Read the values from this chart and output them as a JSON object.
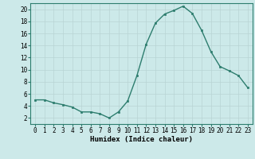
{
  "x": [
    0,
    1,
    2,
    3,
    4,
    5,
    6,
    7,
    8,
    9,
    10,
    11,
    12,
    13,
    14,
    15,
    16,
    17,
    18,
    19,
    20,
    21,
    22,
    23
  ],
  "y": [
    5,
    5,
    4.5,
    4.2,
    3.8,
    3.0,
    3.0,
    2.7,
    2.0,
    3.0,
    4.8,
    9.0,
    14.2,
    17.7,
    19.2,
    19.8,
    20.5,
    19.3,
    16.5,
    13.0,
    10.5,
    9.8,
    9.0,
    7.0
  ],
  "line_color": "#2d7d6e",
  "marker": "s",
  "marker_size": 1.8,
  "linewidth": 1.0,
  "xlabel": "Humidex (Indice chaleur)",
  "xlim": [
    -0.5,
    23.5
  ],
  "ylim": [
    1,
    21
  ],
  "yticks": [
    2,
    4,
    6,
    8,
    10,
    12,
    14,
    16,
    18,
    20
  ],
  "xticks": [
    0,
    1,
    2,
    3,
    4,
    5,
    6,
    7,
    8,
    9,
    10,
    11,
    12,
    13,
    14,
    15,
    16,
    17,
    18,
    19,
    20,
    21,
    22,
    23
  ],
  "bg_color": "#cce9e9",
  "grid_color": "#b8d4d4",
  "tick_fontsize": 5.5,
  "xlabel_fontsize": 6.5
}
